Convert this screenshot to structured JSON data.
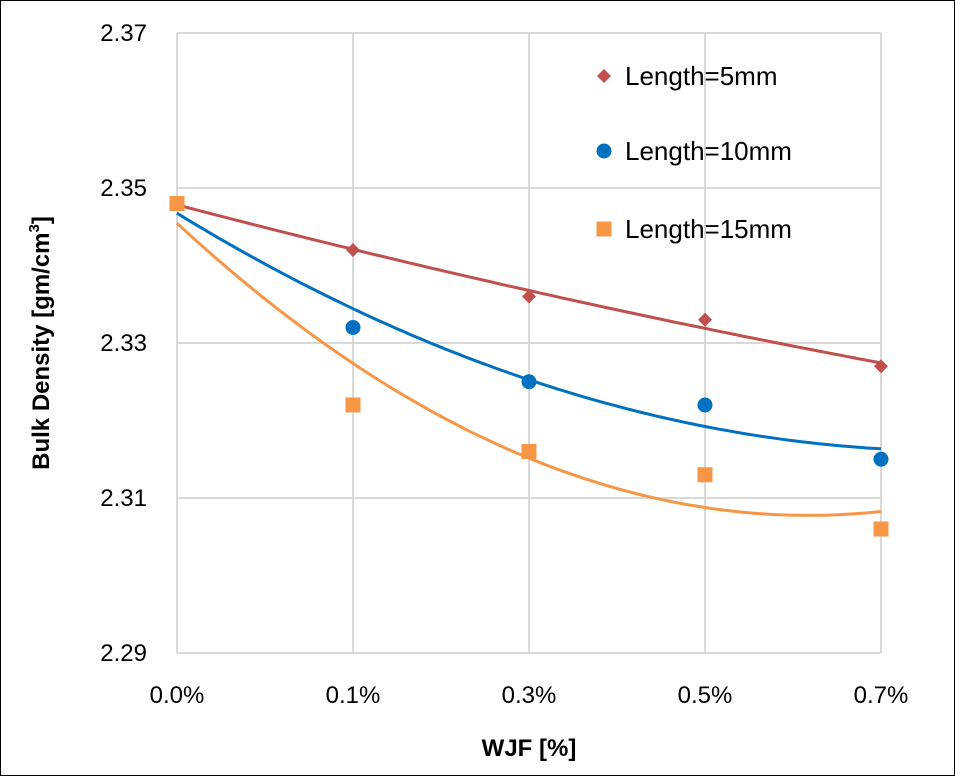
{
  "chart_data": {
    "type": "scatter",
    "title": "",
    "xlabel": "WJF [%]",
    "ylabel": "Bulk Density [gm/cm3]",
    "ylabel_main": "Bulk Density [gm/cm",
    "ylabel_sup": "3",
    "ylabel_end": "]",
    "categories": [
      "0.0%",
      "0.1%",
      "0.3%",
      "0.5%",
      "0.7%"
    ],
    "yticks": [
      "2.29",
      "2.31",
      "2.33",
      "2.35",
      "2.37"
    ],
    "ylim": [
      2.29,
      2.37
    ],
    "grid": true,
    "legend_position": "top-right",
    "trendline": "polynomial order 2",
    "series": [
      {
        "name": "Length=5mm",
        "marker": "diamond",
        "color": "#C0504D",
        "values": [
          2.348,
          2.342,
          2.336,
          2.333,
          2.327
        ]
      },
      {
        "name": "Length=10mm",
        "marker": "circle",
        "color": "#0070C0",
        "values": [
          2.348,
          2.332,
          2.325,
          2.322,
          2.315
        ]
      },
      {
        "name": "Length=15mm",
        "marker": "square",
        "color": "#F79646",
        "values": [
          2.348,
          2.322,
          2.316,
          2.313,
          2.306
        ]
      }
    ]
  }
}
